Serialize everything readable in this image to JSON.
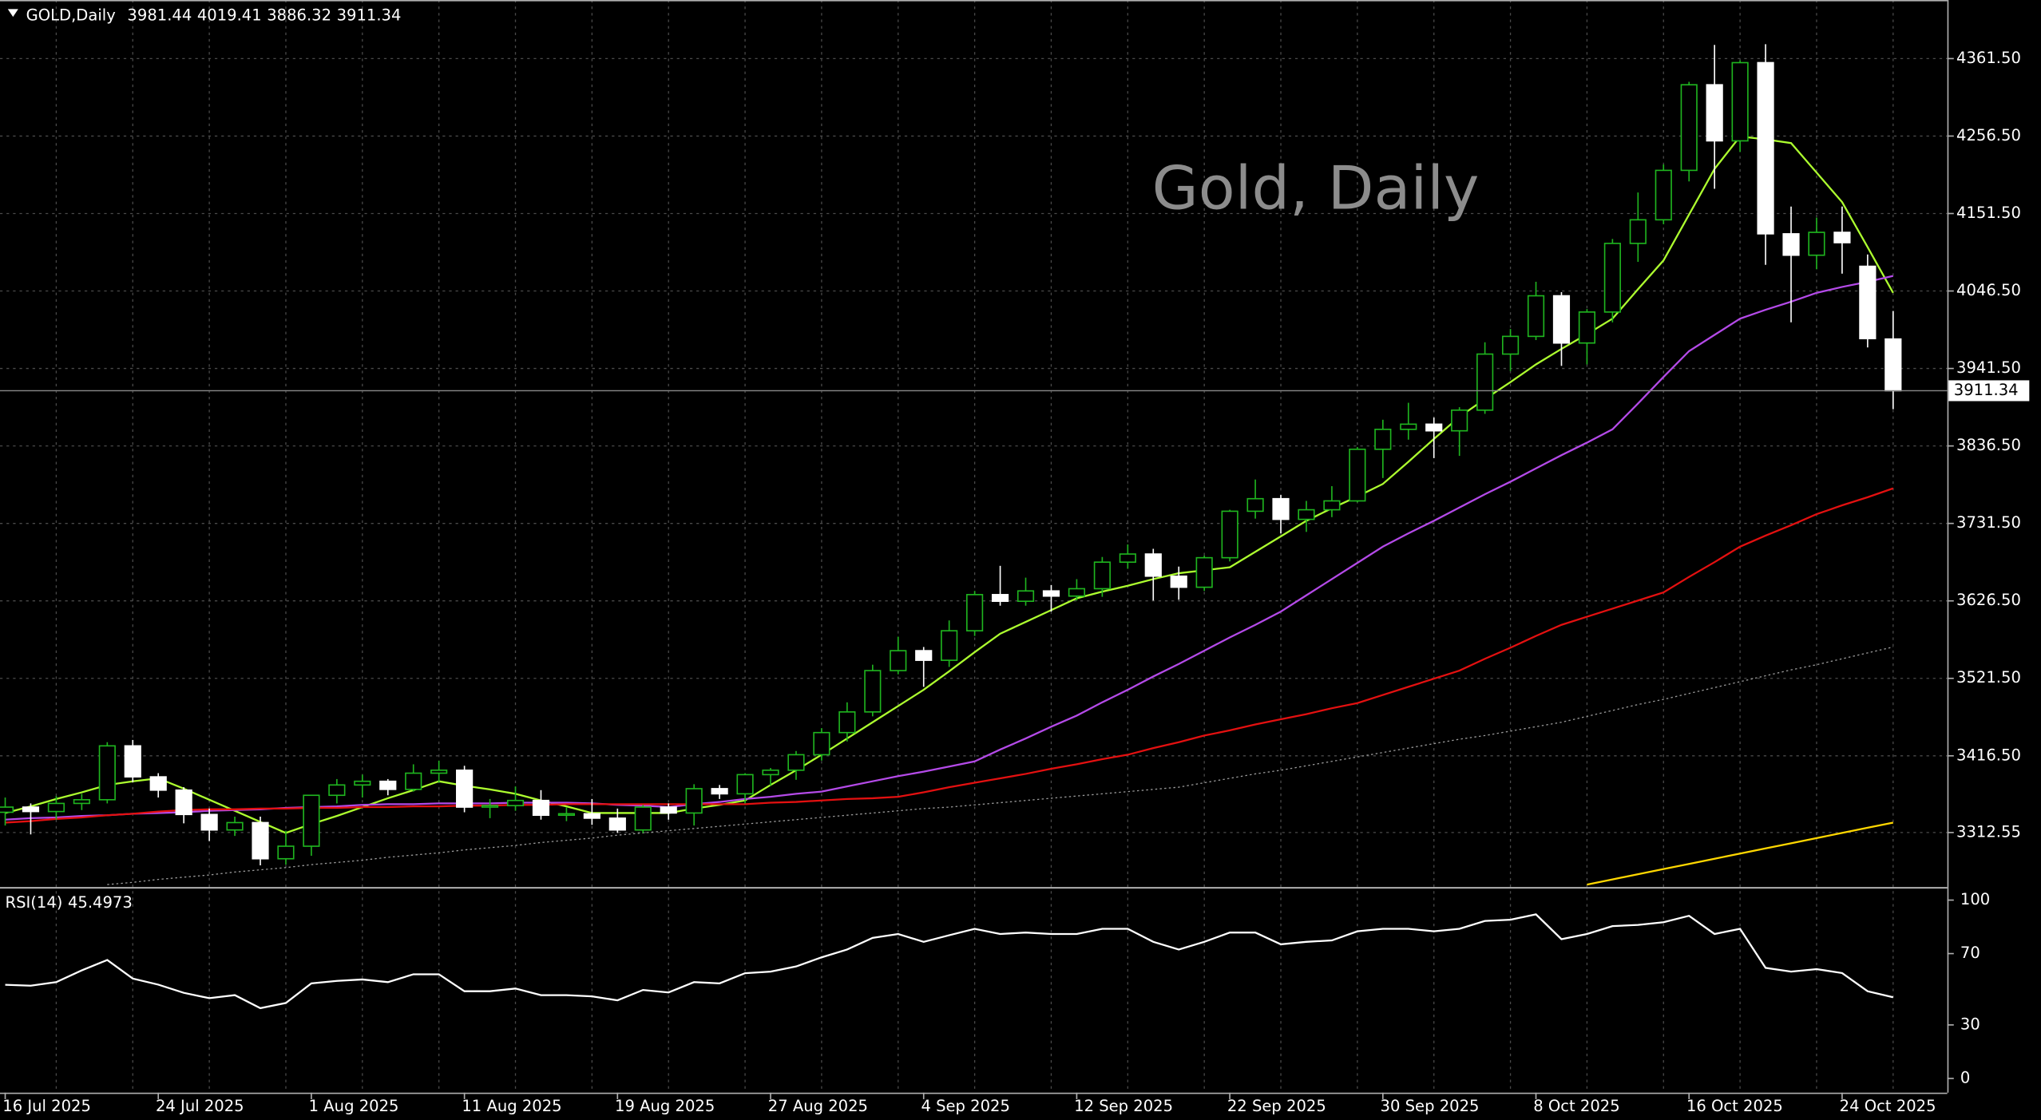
{
  "chart_data": {
    "type": "candlestick",
    "symbol": "GOLD,Daily",
    "watermark": "Gold, Daily",
    "categories": [
      "16 Jul 2025",
      null,
      null,
      null,
      null,
      null,
      "24 Jul 2025",
      null,
      null,
      null,
      null,
      null,
      "1 Aug 2025",
      null,
      null,
      null,
      null,
      null,
      "11 Aug 2025",
      null,
      null,
      null,
      null,
      null,
      "19 Aug 2025",
      null,
      null,
      null,
      null,
      null,
      "27 Aug 2025",
      null,
      null,
      null,
      null,
      null,
      "4 Sep 2025",
      null,
      null,
      null,
      null,
      null,
      "12 Sep 2025",
      null,
      null,
      null,
      null,
      null,
      "22 Sep 2025",
      null,
      null,
      null,
      null,
      null,
      "30 Sep 2025",
      null,
      null,
      null,
      null,
      null,
      "8 Oct 2025",
      null,
      null,
      null,
      null,
      null,
      "16 Oct 2025",
      null,
      null,
      null,
      null,
      null,
      "24 Oct 2025",
      null,
      null
    ],
    "open": [
      3340,
      3347,
      3341,
      3352,
      3357,
      3430,
      3388,
      3370,
      3337,
      3316,
      3326,
      3277,
      3294,
      3363,
      3377,
      3382,
      3371,
      3393,
      3397,
      3347,
      3349,
      3356,
      3336,
      3338,
      3332,
      3316,
      3347,
      3339,
      3372,
      3365,
      3391,
      3397,
      3418,
      3448,
      3476,
      3532,
      3559,
      3546,
      3586,
      3635,
      3626,
      3640,
      3633,
      3643,
      3679,
      3690,
      3660,
      3645,
      3685,
      3748,
      3765,
      3737,
      3750,
      3762,
      3832,
      3859,
      3866,
      3857,
      3885,
      3961,
      3985,
      4040,
      3976,
      4018,
      4111,
      4143,
      4210,
      4326,
      4250,
      4356,
      4124,
      4095,
      4126,
      4080,
      3981.44
    ],
    "high": [
      3360,
      3352,
      3362,
      3365,
      3435,
      3438,
      3393,
      3374,
      3345,
      3334,
      3334,
      3315,
      3363,
      3385,
      3391,
      3385,
      3405,
      3410,
      3403,
      3358,
      3375,
      3370,
      3347,
      3358,
      3345,
      3350,
      3352,
      3378,
      3377,
      3393,
      3400,
      3423,
      3454,
      3489,
      3540,
      3578,
      3564,
      3600,
      3640,
      3674,
      3658,
      3648,
      3656,
      3686,
      3703,
      3697,
      3673,
      3688,
      3750,
      3791,
      3770,
      3762,
      3782,
      3835,
      3872,
      3895,
      3875,
      3889,
      3977,
      3995,
      4059,
      4045,
      4022,
      4117,
      4180,
      4218,
      4330,
      4380,
      4359,
      4381,
      4161,
      4146,
      4161,
      4096,
      4019.41
    ],
    "low": [
      3322,
      3310,
      3330,
      3343,
      3352,
      3381,
      3360,
      3325,
      3301,
      3308,
      3268,
      3269,
      3281,
      3352,
      3360,
      3363,
      3368,
      3380,
      3340,
      3332,
      3342,
      3330,
      3328,
      3323,
      3312,
      3312,
      3330,
      3322,
      3358,
      3352,
      3376,
      3384,
      3410,
      3436,
      3470,
      3527,
      3510,
      3537,
      3579,
      3620,
      3620,
      3612,
      3627,
      3632,
      3670,
      3627,
      3628,
      3640,
      3680,
      3738,
      3718,
      3720,
      3740,
      3760,
      3793,
      3845,
      3820,
      3823,
      3880,
      3938,
      3980,
      3945,
      3947,
      4004,
      4086,
      4137,
      4195,
      4185,
      4235,
      4082,
      4004,
      4076,
      4070,
      3970,
      3886.32
    ],
    "close": [
      3347,
      3341,
      3352,
      3357,
      3430,
      3388,
      3370,
      3337,
      3316,
      3326,
      3277,
      3294,
      3363,
      3377,
      3382,
      3371,
      3393,
      3397,
      3347,
      3349,
      3356,
      3336,
      3338,
      3332,
      3316,
      3347,
      3339,
      3372,
      3365,
      3391,
      3397,
      3418,
      3448,
      3476,
      3532,
      3559,
      3546,
      3586,
      3635,
      3626,
      3640,
      3633,
      3643,
      3679,
      3690,
      3660,
      3645,
      3685,
      3748,
      3765,
      3737,
      3750,
      3762,
      3832,
      3859,
      3866,
      3857,
      3885,
      3961,
      3985,
      4040,
      3976,
      4018,
      4111,
      4143,
      4210,
      4326,
      4250,
      4356,
      4124,
      4095,
      4126,
      4112,
      3982,
      3911.34
    ],
    "up_color": "#1fb51f",
    "down_color": "#ffffff",
    "ylim": [
      3238.5,
      4440.9
    ],
    "yticks": [
      {
        "value": 4361.5,
        "label": "4361.50"
      },
      {
        "value": 4256.5,
        "label": "4256.50"
      },
      {
        "value": 4151.5,
        "label": "4151.50"
      },
      {
        "value": 4046.5,
        "label": "4046.50"
      },
      {
        "value": 3941.5,
        "label": "3941.50"
      },
      {
        "value": 3836.5,
        "label": "3836.50"
      },
      {
        "value": 3731.5,
        "label": "3731.50"
      },
      {
        "value": 3626.5,
        "label": "3626.50"
      },
      {
        "value": 3521.5,
        "label": "3521.50"
      },
      {
        "value": 3416.5,
        "label": "3416.50"
      },
      3312.55
    ],
    "grid": true,
    "overlays": [
      {
        "type": "line",
        "color": "#adff2f",
        "style": "solid",
        "values": [
          3339,
          3348,
          3358,
          3367,
          3377,
          3382,
          3386,
          3372,
          3357,
          3342,
          3327,
          3312,
          3324,
          3335,
          3347,
          3359,
          3370,
          3382,
          3376,
          3371,
          3365,
          3356,
          3348,
          3339,
          3339,
          3339,
          3339,
          3345,
          3350,
          3356,
          3377,
          3397,
          3418,
          3440,
          3462,
          3484,
          3506,
          3531,
          3557,
          3582,
          3598,
          3614,
          3630,
          3639,
          3647,
          3656,
          3664,
          3668,
          3672,
          3693,
          3714,
          3735,
          3752,
          3768,
          3785,
          3815,
          3846,
          3876,
          3900,
          3923,
          3947,
          3968,
          3988,
          4009,
          4049,
          4088,
          4150,
          4212,
          4256,
          4252,
          4247,
          4207,
          4167,
          4106,
          4044
        ]
      },
      {
        "type": "line",
        "color": "#b44ae8",
        "style": "solid",
        "values": [
          3330,
          3332,
          3333,
          3335,
          3336,
          3338,
          3339,
          3340,
          3342,
          3343,
          3344,
          3346,
          3347,
          3348,
          3350,
          3351,
          3351,
          3352,
          3352,
          3352,
          3353,
          3353,
          3353,
          3352,
          3350,
          3349,
          3347,
          3351,
          3354,
          3358,
          3361,
          3365,
          3368,
          3375,
          3382,
          3389,
          3395,
          3402,
          3409,
          3425,
          3440,
          3456,
          3471,
          3489,
          3506,
          3524,
          3541,
          3559,
          3577,
          3594,
          3612,
          3634,
          3656,
          3678,
          3700,
          3718,
          3735,
          3753,
          3771,
          3788,
          3806,
          3824,
          3841,
          3859,
          3894,
          3930,
          3965,
          3987,
          4009,
          4021,
          4032,
          4044,
          4052,
          4059,
          4067
        ]
      },
      {
        "type": "line",
        "color": "#e31010",
        "style": "solid",
        "values": [
          3326,
          3328,
          3331,
          3333,
          3336,
          3338,
          3341,
          3343,
          3344,
          3344,
          3345,
          3345,
          3346,
          3346,
          3347,
          3347,
          3348,
          3348,
          3349,
          3349,
          3350,
          3350,
          3351,
          3351,
          3351,
          3351,
          3351,
          3351,
          3351,
          3351,
          3353,
          3354,
          3356,
          3358,
          3359,
          3361,
          3367,
          3374,
          3380,
          3386,
          3392,
          3399,
          3405,
          3412,
          3418,
          3427,
          3435,
          3444,
          3451,
          3459,
          3466,
          3473,
          3481,
          3488,
          3499,
          3510,
          3521,
          3532,
          3548,
          3563,
          3579,
          3594,
          3605,
          3616,
          3627,
          3638,
          3659,
          3679,
          3700,
          3715,
          3729,
          3744,
          3756,
          3767,
          3779
        ]
      },
      {
        "type": "line",
        "color": "#9a9a9a",
        "style": "dotted",
        "values": [
          null,
          null,
          null,
          null,
          3242,
          3245,
          3249,
          3252,
          3255,
          3259,
          3262,
          3265,
          3269,
          3272,
          3275,
          3279,
          3282,
          3285,
          3289,
          3292,
          3295,
          3299,
          3302,
          3305,
          3309,
          3312,
          3315,
          3318,
          3321,
          3324,
          3327,
          3330,
          3333,
          3336,
          3339,
          3342,
          3345,
          3347,
          3350,
          3353,
          3356,
          3359,
          3362,
          3365,
          3368,
          3371,
          3374,
          3380,
          3386,
          3392,
          3397,
          3403,
          3409,
          3415,
          3421,
          3427,
          3433,
          3439,
          3444,
          3450,
          3456,
          3462,
          3470,
          3478,
          3486,
          3493,
          3501,
          3509,
          3517,
          3525,
          3533,
          3540,
          3548,
          3556,
          3564
        ]
      },
      {
        "type": "line",
        "color": "#ffd700",
        "style": "solid",
        "values": [
          null,
          null,
          null,
          null,
          null,
          null,
          null,
          null,
          null,
          null,
          null,
          null,
          null,
          null,
          null,
          null,
          null,
          null,
          null,
          null,
          null,
          null,
          null,
          null,
          null,
          null,
          null,
          null,
          null,
          null,
          null,
          null,
          null,
          null,
          null,
          null,
          null,
          null,
          null,
          null,
          null,
          null,
          null,
          null,
          null,
          null,
          null,
          null,
          null,
          null,
          null,
          null,
          null,
          null,
          null,
          null,
          null,
          null,
          null,
          null,
          null,
          null,
          3242,
          3249,
          3256,
          3263,
          3270,
          3277,
          3284,
          3291,
          3298,
          3305,
          3312,
          3319,
          3326
        ]
      }
    ],
    "last_price_line": true,
    "indicator": {
      "type": "line",
      "label": "RSI(14)",
      "color": "#ffffff",
      "values": [
        52.5,
        52,
        54,
        60.6,
        66.4,
        56,
        52.6,
        48,
        45,
        46.7,
        39.4,
        42.3,
        53.3,
        54.7,
        55.5,
        54,
        58.4,
        58.4,
        48.9,
        48.9,
        50.4,
        46.7,
        46.7,
        46,
        43.8,
        49.6,
        48.2,
        54,
        53.3,
        59,
        59.9,
        62.8,
        67.9,
        72.3,
        78.8,
        81,
        76.6,
        80.3,
        83.9,
        81,
        81.8,
        81,
        81,
        83.9,
        83.9,
        76.6,
        72.3,
        76.6,
        81.8,
        81.8,
        75.2,
        76.6,
        77.4,
        82.5,
        83.9,
        83.9,
        82.5,
        83.9,
        88.3,
        89,
        92,
        78.1,
        81,
        85.4,
        86.1,
        87.6,
        91.2,
        81,
        83.9,
        62,
        59.9,
        61.3,
        59.1,
        48.9,
        45.4973
      ],
      "ylim": [
        -8,
        105.8
      ],
      "yticks": [
        100,
        70,
        30,
        0
      ]
    }
  }
}
